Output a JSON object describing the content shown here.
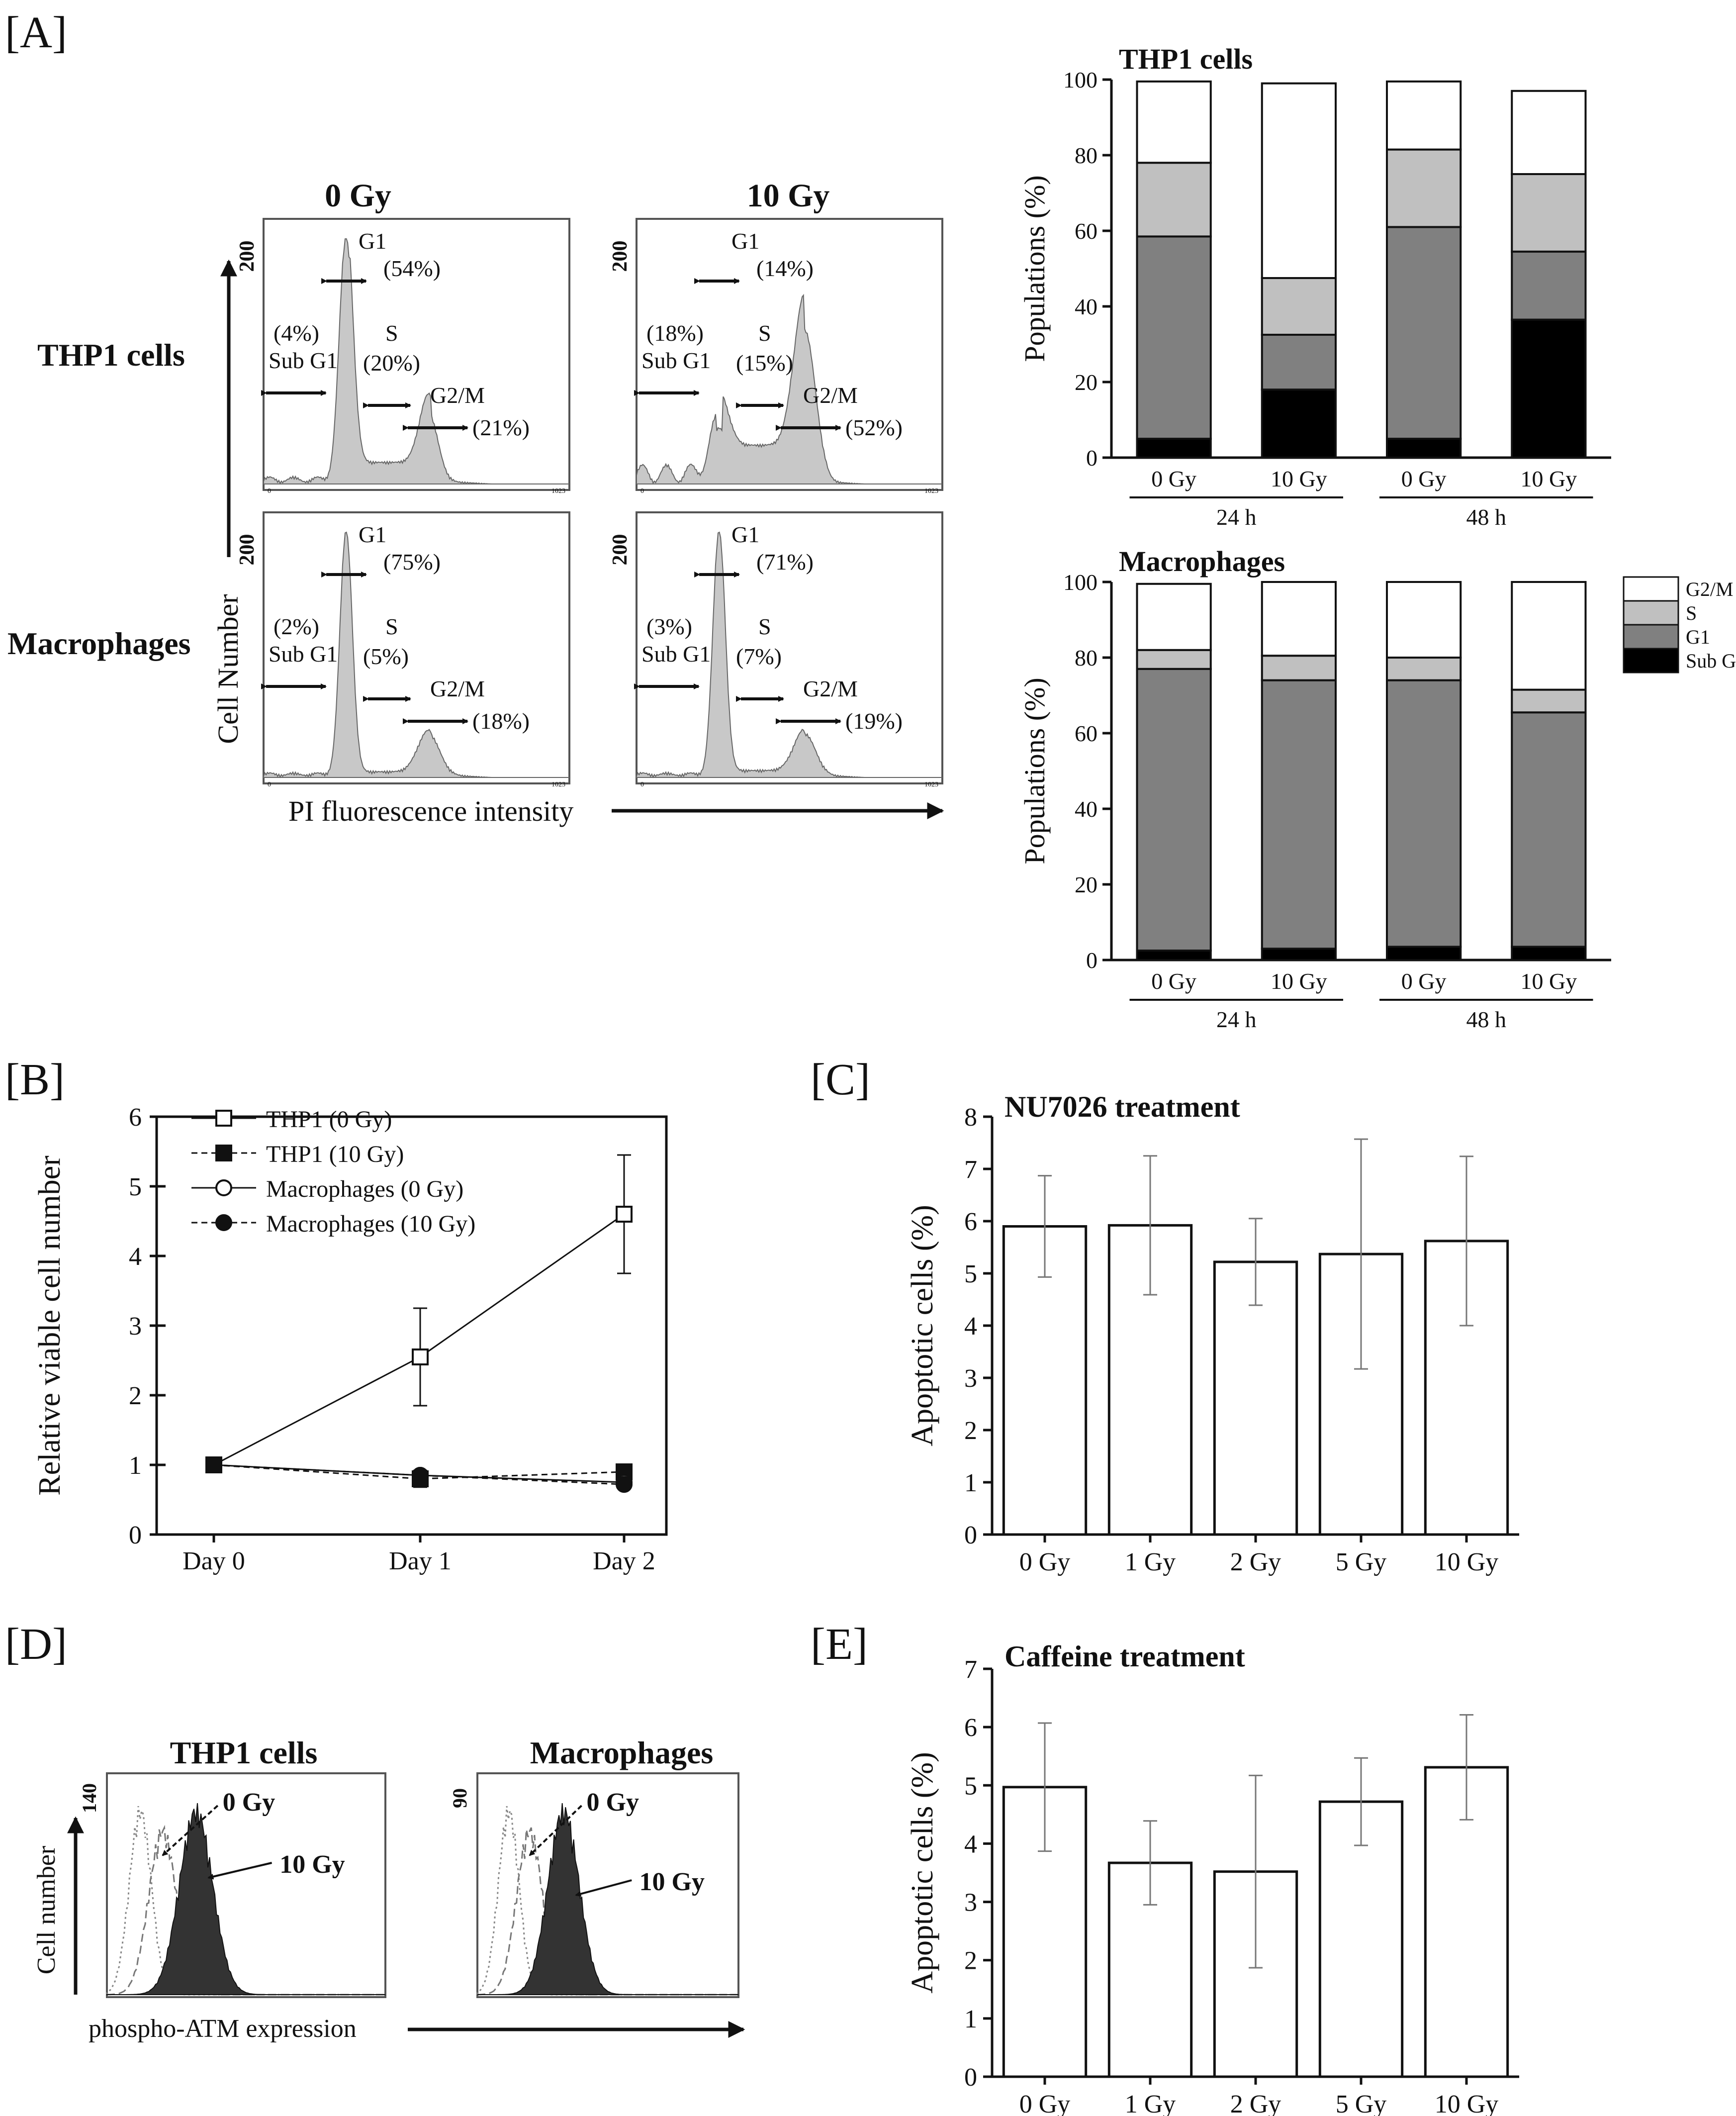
{
  "panels": {
    "A": "[A]",
    "B": "[B]",
    "C": "[C]",
    "D": "[D]",
    "E": "[E]"
  },
  "colors": {
    "sub_g1": "#000000",
    "g1": "#808080",
    "s": "#c0c0c0",
    "g2m": "#ffffff",
    "hist_fill": "#c8c8c8",
    "dark_fill": "#333333"
  },
  "flow_A": {
    "col_titles": [
      "0 Gy",
      "10 Gy"
    ],
    "row_titles": [
      "THP1 cells",
      "Macrophages"
    ],
    "y_axis_label": "Cell Number",
    "x_axis_label": "PI fluorescence intensity",
    "y_max": "200",
    "x_tick_min": "0",
    "x_tick_max": "1023",
    "labels": {
      "g1": "G1",
      "s": "S",
      "g2m": "G2/M",
      "sub_g1": "Sub G1"
    },
    "panels": [
      {
        "row": 0,
        "col": 0,
        "g1": "(54%)",
        "s": "(20%)",
        "g2m": "(21%)",
        "sub": "(4%)"
      },
      {
        "row": 0,
        "col": 1,
        "g1": "(14%)",
        "s": "(15%)",
        "g2m": "(52%)",
        "sub": "(18%)"
      },
      {
        "row": 1,
        "col": 0,
        "g1": "(75%)",
        "s": "(5%)",
        "g2m": "(18%)",
        "sub": "(2%)"
      },
      {
        "row": 1,
        "col": 1,
        "g1": "(71%)",
        "s": "(7%)",
        "g2m": "(19%)",
        "sub": "(3%)"
      }
    ]
  },
  "stacked_ylabel": "Populations (%)",
  "stacked_legend": [
    "G2/M",
    "S",
    "G1",
    "Sub G1"
  ],
  "line_legend": [
    "THP1 (0 Gy)",
    "THP1 (10 Gy)",
    "Macrophages (0 Gy)",
    "Macrophages (10 Gy)"
  ],
  "flow_D": {
    "titles": [
      "THP1 cells",
      "Macrophages"
    ],
    "y_max": [
      "140",
      "90"
    ],
    "annot_0": "0 Gy",
    "annot_10": "10 Gy",
    "y_axis_label": "Cell number",
    "x_axis_label": "phospho-ATM expression"
  },
  "chart_data": [
    {
      "id": "thp1_stacked",
      "type": "bar",
      "title": "THP1 cells",
      "ylabel": "Populations (%)",
      "ylim": [
        0,
        100
      ],
      "yticks": [
        0,
        20,
        40,
        60,
        80,
        100
      ],
      "categories": [
        "0 Gy",
        "10 Gy",
        "0 Gy",
        "10 Gy"
      ],
      "groups": [
        {
          "label": "24 h",
          "span": [
            0,
            1
          ]
        },
        {
          "label": "48 h",
          "span": [
            2,
            3
          ]
        }
      ],
      "series": [
        {
          "name": "Sub G1",
          "values": [
            5,
            18,
            5,
            36.5
          ]
        },
        {
          "name": "G1",
          "values": [
            53.5,
            14.5,
            56,
            18
          ]
        },
        {
          "name": "S",
          "values": [
            19.5,
            15,
            20.5,
            20.5
          ]
        },
        {
          "name": "G2/M",
          "values": [
            21.5,
            51.5,
            18,
            22
          ]
        }
      ]
    },
    {
      "id": "macro_stacked",
      "type": "bar",
      "title": "Macrophages",
      "ylabel": "Populations (%)",
      "ylim": [
        0,
        100
      ],
      "yticks": [
        0,
        20,
        40,
        60,
        80,
        100
      ],
      "categories": [
        "0 Gy",
        "10 Gy",
        "0 Gy",
        "10 Gy"
      ],
      "groups": [
        {
          "label": "24 h",
          "span": [
            0,
            1
          ]
        },
        {
          "label": "48 h",
          "span": [
            2,
            3
          ]
        }
      ],
      "series": [
        {
          "name": "Sub G1",
          "values": [
            2.5,
            3,
            3.5,
            3.5
          ]
        },
        {
          "name": "G1",
          "values": [
            74.5,
            71,
            70.5,
            62
          ]
        },
        {
          "name": "S",
          "values": [
            5,
            6.5,
            6,
            6
          ]
        },
        {
          "name": "G2/M",
          "values": [
            17.5,
            19.5,
            20,
            28.5
          ]
        }
      ],
      "legend": "right"
    },
    {
      "id": "viability",
      "type": "line",
      "title": "",
      "ylabel": "Relative viable cell number",
      "xlabel": "",
      "categories": [
        "Day 0",
        "Day 1",
        "Day 2"
      ],
      "ylim": [
        0,
        6
      ],
      "yticks": [
        0,
        1,
        2,
        3,
        4,
        5,
        6
      ],
      "series": [
        {
          "name": "THP1 (0 Gy)",
          "values": [
            1.0,
            2.55,
            4.6
          ],
          "errors": [
            0.05,
            0.7,
            0.85
          ],
          "marker": "open-square",
          "dash": false
        },
        {
          "name": "THP1 (10 Gy)",
          "values": [
            1.0,
            0.8,
            0.9
          ],
          "errors": [
            0.05,
            0.12,
            0.05
          ],
          "marker": "filled-square",
          "dash": true
        },
        {
          "name": "Macrophages (0 Gy)",
          "values": [
            1.0,
            0.85,
            0.75
          ],
          "errors": [
            0.03,
            0.05,
            0.05
          ],
          "marker": "open-circle",
          "dash": false
        },
        {
          "name": "Macrophages (10 Gy)",
          "values": [
            1.0,
            0.85,
            0.72
          ],
          "errors": [
            0.03,
            0.05,
            0.05
          ],
          "marker": "filled-circle",
          "dash": true
        }
      ]
    },
    {
      "id": "nu7026",
      "type": "bar",
      "title": "NU7026 treatment",
      "ylabel": "Apoptotic cells (%)",
      "categories": [
        "0 Gy",
        "1 Gy",
        "2 Gy",
        "5 Gy",
        "10 Gy"
      ],
      "values": [
        5.9,
        5.92,
        5.22,
        5.37,
        5.62
      ],
      "errors": [
        0.97,
        1.33,
        0.83,
        2.2,
        1.62
      ],
      "ylim": [
        0,
        8
      ],
      "yticks": [
        0,
        1,
        2,
        3,
        4,
        5,
        6,
        7,
        8
      ]
    },
    {
      "id": "caffeine",
      "type": "bar",
      "title": "Caffeine treatment",
      "ylabel": "Apoptotic cells (%)",
      "categories": [
        "0 Gy",
        "1 Gy",
        "2 Gy",
        "5 Gy",
        "10 Gy"
      ],
      "values": [
        4.97,
        3.67,
        3.52,
        4.72,
        5.31
      ],
      "errors": [
        1.1,
        0.72,
        1.65,
        0.75,
        0.9
      ],
      "ylim": [
        0,
        7
      ],
      "yticks": [
        0,
        1,
        2,
        3,
        4,
        5,
        6,
        7
      ]
    }
  ]
}
